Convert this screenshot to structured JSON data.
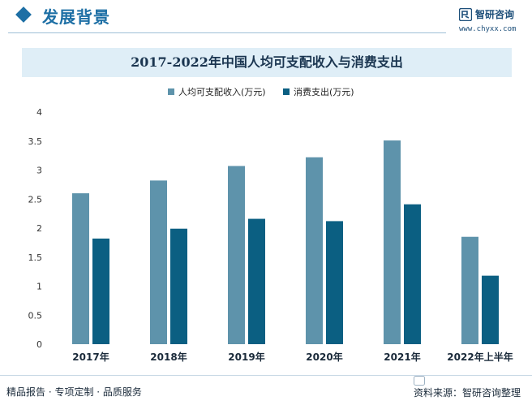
{
  "header": {
    "section_title": "发展背景",
    "brand_name": "智研咨询",
    "brand_url": "www.chyxx.com"
  },
  "chart_data": {
    "type": "bar",
    "title": "2017-2022年中国人均可支配收入与消费支出",
    "categories": [
      "2017年",
      "2018年",
      "2019年",
      "2020年",
      "2021年",
      "2022年上半年"
    ],
    "series": [
      {
        "name": "人均可支配收入(万元)",
        "color": "#5e93ab",
        "values": [
          2.6,
          2.82,
          3.07,
          3.22,
          3.51,
          1.85
        ]
      },
      {
        "name": "消费支出(万元)",
        "color": "#0b5f82",
        "values": [
          1.82,
          1.99,
          2.16,
          2.12,
          2.41,
          1.18
        ]
      }
    ],
    "ylim": [
      0,
      4
    ],
    "yticks": [
      "0",
      "0.5",
      "1",
      "1.5",
      "2",
      "2.5",
      "3",
      "3.5",
      "4"
    ],
    "legend_position": "top",
    "grid": false
  },
  "footer": {
    "left": "精品报告 · 专项定制 · 品质服务",
    "source": "资料来源：智研咨询整理"
  }
}
